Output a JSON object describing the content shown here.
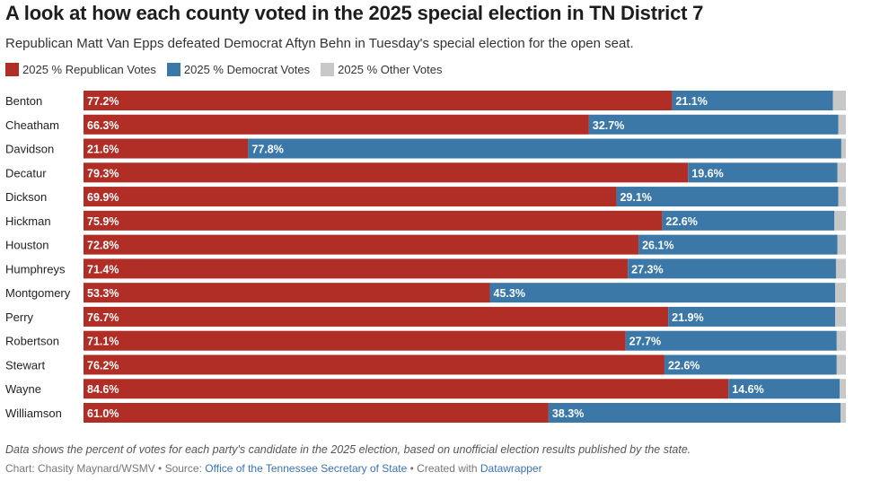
{
  "title": "A look at how each county voted in the 2025 special election in TN District 7",
  "subtitle": "Republican Matt Van Epps defeated Democrat Aftyn Behn in Tuesday's special election for the open seat.",
  "colors": {
    "republican": "#b02e25",
    "democrat": "#3b78a8",
    "other": "#c8c8c8"
  },
  "chart_data": {
    "type": "bar",
    "orientation": "horizontal",
    "stacked": true,
    "xlim": [
      0,
      100
    ],
    "legend_position": "top",
    "categories": [
      "Benton",
      "Cheatham",
      "Davidson",
      "Decatur",
      "Dickson",
      "Hickman",
      "Houston",
      "Humphreys",
      "Montgomery",
      "Perry",
      "Robertson",
      "Stewart",
      "Wayne",
      "Williamson"
    ],
    "series": [
      {
        "name": "2025 % Republican Votes",
        "values": [
          77.2,
          66.3,
          21.6,
          79.3,
          69.9,
          75.9,
          72.8,
          71.4,
          53.3,
          76.7,
          71.1,
          76.2,
          84.6,
          61.0
        ],
        "labels": [
          "77.2%",
          "66.3%",
          "21.6%",
          "79.3%",
          "69.9%",
          "75.9%",
          "72.8%",
          "71.4%",
          "53.3%",
          "76.7%",
          "71.1%",
          "76.2%",
          "84.6%",
          "61.0%"
        ]
      },
      {
        "name": "2025 % Democrat Votes",
        "values": [
          21.1,
          32.7,
          77.8,
          19.6,
          29.1,
          22.6,
          26.1,
          27.3,
          45.3,
          21.9,
          27.7,
          22.6,
          14.6,
          38.3
        ],
        "labels": [
          "21.1%",
          "32.7%",
          "77.8%",
          "19.6%",
          "29.1%",
          "22.6%",
          "26.1%",
          "27.3%",
          "45.3%",
          "21.9%",
          "27.7%",
          "22.6%",
          "14.6%",
          "38.3%"
        ]
      },
      {
        "name": "2025 % Other Votes",
        "values": [
          1.7,
          1.0,
          0.6,
          1.1,
          1.0,
          1.5,
          1.1,
          1.3,
          1.4,
          1.4,
          1.2,
          1.2,
          0.8,
          0.7
        ]
      }
    ]
  },
  "notes": "Data shows the percent of votes for each party's candidate in the 2025 election, based on unofficial election results published by the state.",
  "credit": {
    "prefix": "Chart: Chasity Maynard/WSMV • Source: ",
    "source": "Office of the Tennessee Secretary of State",
    "mid": " • Created with ",
    "tool": "Datawrapper"
  }
}
